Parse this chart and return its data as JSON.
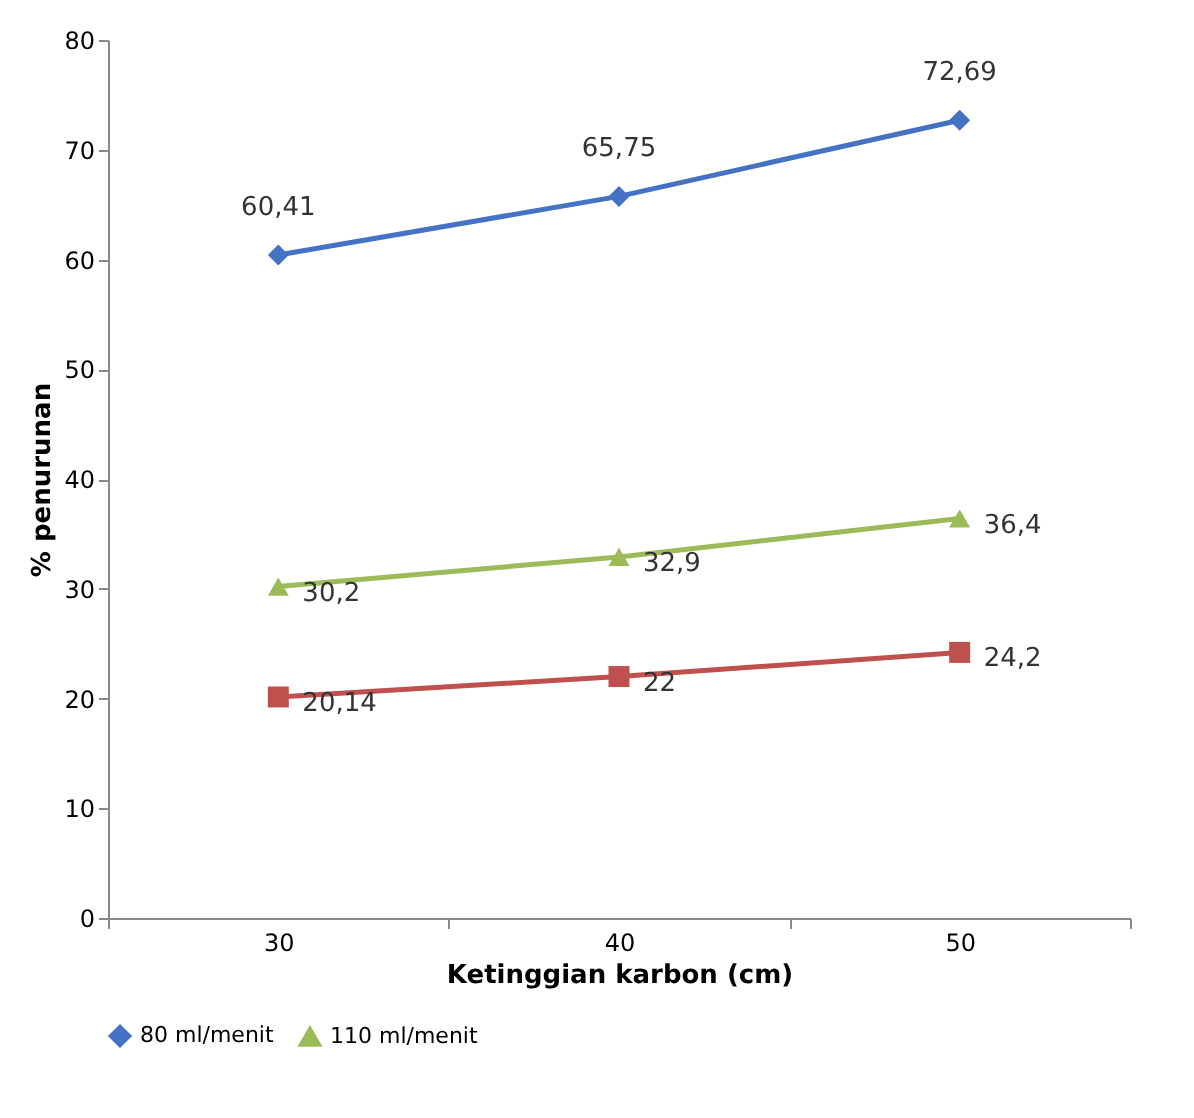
{
  "chart_data": {
    "type": "line",
    "xlabel": "Ketinggian karbon (cm)",
    "ylabel": "% penurunan",
    "categories": [
      "30",
      "40",
      "50"
    ],
    "series": [
      {
        "name": "80 ml/menit",
        "color": "#4472c4",
        "marker": "diamond",
        "values": [
          60.41,
          65.75,
          72.69
        ],
        "value_labels": [
          "60,41",
          "65,75",
          "72,69"
        ]
      },
      {
        "name": "110 ml/menit",
        "color": "#9bbb59",
        "marker": "triangle",
        "values": [
          30.2,
          32.9,
          36.4
        ],
        "value_labels": [
          "30,2",
          "32,9",
          "36,4"
        ]
      },
      {
        "color": "#c0504d",
        "marker": "square",
        "values": [
          20.14,
          22,
          24.2
        ],
        "value_labels": [
          "20,14",
          "22",
          "24,2"
        ]
      }
    ],
    "ylim": [
      0,
      80
    ],
    "yticks": [
      0,
      10,
      20,
      30,
      40,
      50,
      60,
      70,
      80
    ],
    "grid": false,
    "legend": "bottom"
  }
}
